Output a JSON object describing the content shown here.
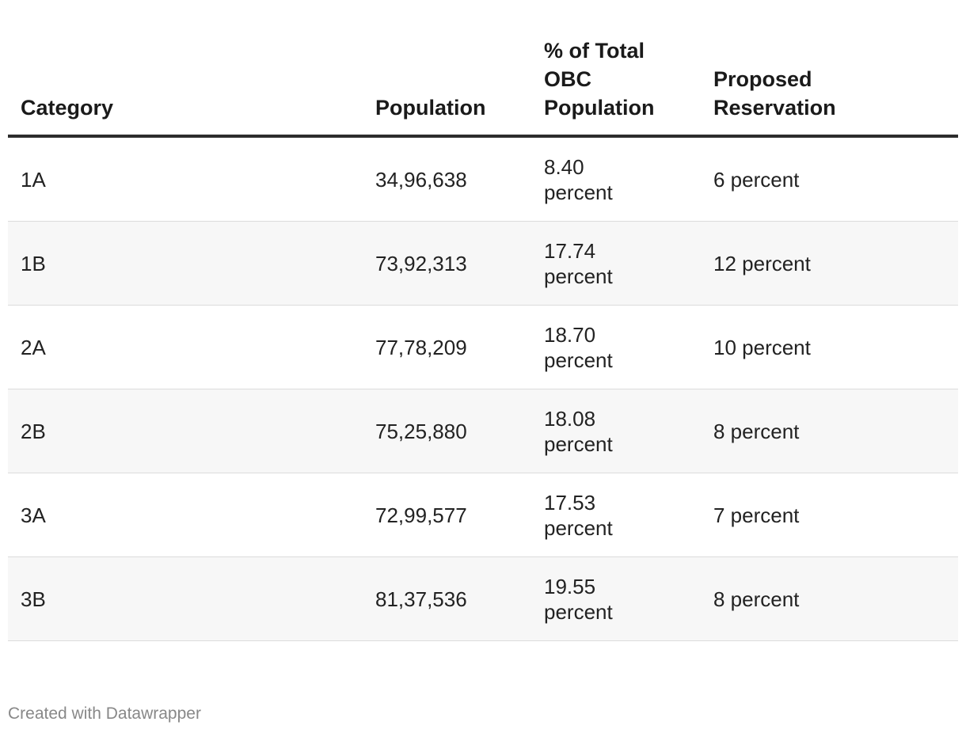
{
  "chart_data": {
    "type": "table",
    "columns": [
      "Category",
      "Population",
      "% of Total OBC Population",
      "Proposed Reservation"
    ],
    "rows": [
      {
        "category": "1A",
        "population": "34,96,638",
        "pct_value": "8.40",
        "pct_unit": "percent",
        "reservation": "6 percent"
      },
      {
        "category": "1B",
        "population": "73,92,313",
        "pct_value": "17.74",
        "pct_unit": "percent",
        "reservation": "12 percent"
      },
      {
        "category": "2A",
        "population": "77,78,209",
        "pct_value": "18.70",
        "pct_unit": "percent",
        "reservation": "10 percent"
      },
      {
        "category": "2B",
        "population": "75,25,880",
        "pct_value": "18.08",
        "pct_unit": "percent",
        "reservation": "8 percent"
      },
      {
        "category": "3A",
        "population": "72,99,577",
        "pct_value": "17.53",
        "pct_unit": "percent",
        "reservation": "7 percent"
      },
      {
        "category": "3B",
        "population": "81,37,536",
        "pct_value": "19.55",
        "pct_unit": "percent",
        "reservation": "8 percent"
      }
    ]
  },
  "footer": {
    "credit": "Created with Datawrapper"
  }
}
